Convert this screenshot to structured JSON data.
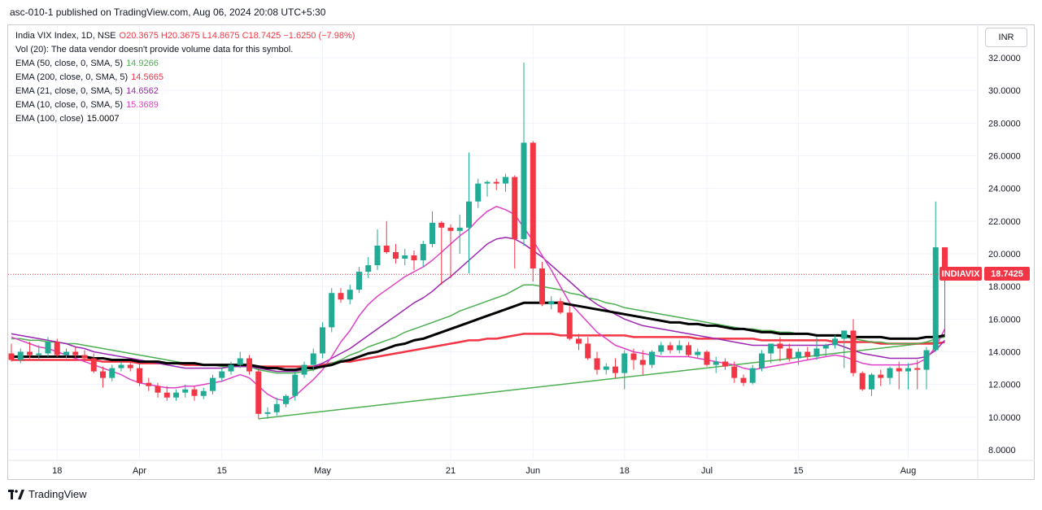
{
  "header": {
    "text": "asc-010-1 published on TradingView.com, Aug 06, 2024 20:08 UTC+5:30"
  },
  "legend": {
    "symbol": "India VIX Index, 1D, NSE",
    "ohlc": "O20.3675  H20.3675  L14.8675  C18.7425  −1.6250 (−7.98%)",
    "vol": "Vol (20): The data vendor doesn't provide volume data for this symbol.",
    "ema": [
      {
        "label": "EMA (50, close, 0, SMA, 5)",
        "value": "14.9266",
        "color": "#4caf50"
      },
      {
        "label": "EMA (200, close, 0, SMA, 5)",
        "value": "14.5665",
        "color": "#f23645"
      },
      {
        "label": "EMA (21, close, 0, SMA, 5)",
        "value": "14.6562",
        "color": "#9c27b0"
      },
      {
        "label": "EMA (10, close, 0, SMA, 5)",
        "value": "15.3689",
        "color": "#e040c8"
      },
      {
        "label": "EMA (100, close)",
        "value": "15.0007",
        "color": "#000000"
      }
    ]
  },
  "currency_button": "INR",
  "last_price": {
    "ticker": "INDIAVIX",
    "value": "18.7425"
  },
  "footer": {
    "brand": "TradingView"
  },
  "chart_data": {
    "type": "candlestick",
    "y_axis": {
      "min": 7,
      "max": 33,
      "ticks": [
        "8.0000",
        "10.0000",
        "12.0000",
        "14.0000",
        "16.0000",
        "18.0000",
        "20.0000",
        "22.0000",
        "24.0000",
        "26.0000",
        "28.0000",
        "30.0000",
        "32.0000"
      ]
    },
    "x_ticks": [
      {
        "label": "18",
        "i": 5
      },
      {
        "label": "Apr",
        "i": 14
      },
      {
        "label": "15",
        "i": 23
      },
      {
        "label": "May",
        "i": 34
      },
      {
        "label": "21",
        "i": 48
      },
      {
        "label": "Jun",
        "i": 57
      },
      {
        "label": "18",
        "i": 67
      },
      {
        "label": "Jul",
        "i": 76
      },
      {
        "label": "15",
        "i": 86
      },
      {
        "label": "Aug",
        "i": 98
      }
    ],
    "colors": {
      "up": "#22ab94",
      "down": "#f23645"
    },
    "candles": [
      [
        13.9,
        14.5,
        13.4,
        13.5
      ],
      [
        13.5,
        14.2,
        13.3,
        14.0
      ],
      [
        14.0,
        14.6,
        13.6,
        13.8
      ],
      [
        13.8,
        14.4,
        13.5,
        13.9
      ],
      [
        13.9,
        14.9,
        13.7,
        14.6
      ],
      [
        14.6,
        14.8,
        13.7,
        13.8
      ],
      [
        13.8,
        14.2,
        13.6,
        14.0
      ],
      [
        14.0,
        14.3,
        13.6,
        13.8
      ],
      [
        13.8,
        14.1,
        13.4,
        13.6
      ],
      [
        13.6,
        13.9,
        12.7,
        12.8
      ],
      [
        12.8,
        13.1,
        11.8,
        12.4
      ],
      [
        12.4,
        13.2,
        12.2,
        13.0
      ],
      [
        13.0,
        13.4,
        12.8,
        13.2
      ],
      [
        13.2,
        13.4,
        12.8,
        13.0
      ],
      [
        13.0,
        13.3,
        11.9,
        12.1
      ],
      [
        12.1,
        12.4,
        11.6,
        11.9
      ],
      [
        11.9,
        12.1,
        11.2,
        11.5
      ],
      [
        11.5,
        11.9,
        11.0,
        11.2
      ],
      [
        11.2,
        11.7,
        11.0,
        11.5
      ],
      [
        11.5,
        12.0,
        11.2,
        11.7
      ],
      [
        11.7,
        11.9,
        11.0,
        11.3
      ],
      [
        11.3,
        11.8,
        11.1,
        11.6
      ],
      [
        11.6,
        12.6,
        11.4,
        12.4
      ],
      [
        12.4,
        13.0,
        12.2,
        12.8
      ],
      [
        12.8,
        13.4,
        12.6,
        13.2
      ],
      [
        13.2,
        14.0,
        13.0,
        13.6
      ],
      [
        13.6,
        13.8,
        12.6,
        12.8
      ],
      [
        12.8,
        13.0,
        9.9,
        10.2
      ],
      [
        10.2,
        10.6,
        9.9,
        10.3
      ],
      [
        10.3,
        11.2,
        10.1,
        10.8
      ],
      [
        10.8,
        11.4,
        10.6,
        11.3
      ],
      [
        11.3,
        12.8,
        11.0,
        12.6
      ],
      [
        12.6,
        13.4,
        12.4,
        13.2
      ],
      [
        13.2,
        14.2,
        12.8,
        13.9
      ],
      [
        13.9,
        15.8,
        13.6,
        15.5
      ],
      [
        15.5,
        17.9,
        15.2,
        17.6
      ],
      [
        17.6,
        17.9,
        17.0,
        17.2
      ],
      [
        17.2,
        18.1,
        16.9,
        17.8
      ],
      [
        17.8,
        19.2,
        17.6,
        18.9
      ],
      [
        18.9,
        19.8,
        18.5,
        19.3
      ],
      [
        19.3,
        21.5,
        19.0,
        20.5
      ],
      [
        20.5,
        22.0,
        20.0,
        20.1
      ],
      [
        20.1,
        20.6,
        19.4,
        19.7
      ],
      [
        19.7,
        20.3,
        19.3,
        19.9
      ],
      [
        19.9,
        20.2,
        19.0,
        19.6
      ],
      [
        19.6,
        20.8,
        19.2,
        20.6
      ],
      [
        20.6,
        22.6,
        20.4,
        21.9
      ],
      [
        21.9,
        22.0,
        18.1,
        21.6
      ],
      [
        21.6,
        21.8,
        18.5,
        21.4
      ],
      [
        21.4,
        22.4,
        20.0,
        21.6
      ],
      [
        21.6,
        26.2,
        18.8,
        23.2
      ],
      [
        23.2,
        24.6,
        22.8,
        24.3
      ],
      [
        24.3,
        24.5,
        23.5,
        24.4
      ],
      [
        24.4,
        24.6,
        23.9,
        24.3
      ],
      [
        24.3,
        24.9,
        23.8,
        24.7
      ],
      [
        24.7,
        24.8,
        19.1,
        20.9
      ],
      [
        20.9,
        31.7,
        20.5,
        26.8
      ],
      [
        26.8,
        26.9,
        18.3,
        19.1
      ],
      [
        19.1,
        19.5,
        16.8,
        16.9
      ],
      [
        16.9,
        17.4,
        16.6,
        17.1
      ],
      [
        17.1,
        17.3,
        16.3,
        16.4
      ],
      [
        16.4,
        16.8,
        14.7,
        14.8
      ],
      [
        14.8,
        15.1,
        14.1,
        14.5
      ],
      [
        14.5,
        14.9,
        13.5,
        13.6
      ],
      [
        13.6,
        14.0,
        12.6,
        12.9
      ],
      [
        12.9,
        13.3,
        12.6,
        13.1
      ],
      [
        13.1,
        13.6,
        12.4,
        12.7
      ],
      [
        12.7,
        14.1,
        11.7,
        13.9
      ],
      [
        13.9,
        14.2,
        12.9,
        13.5
      ],
      [
        13.5,
        14.1,
        12.6,
        13.2
      ],
      [
        13.2,
        14.1,
        13.0,
        14.0
      ],
      [
        14.0,
        14.6,
        13.8,
        14.4
      ],
      [
        14.4,
        14.6,
        13.9,
        14.1
      ],
      [
        14.1,
        14.7,
        13.9,
        14.4
      ],
      [
        14.4,
        14.6,
        13.7,
        13.8
      ],
      [
        13.8,
        14.2,
        13.6,
        14.0
      ],
      [
        14.0,
        14.1,
        13.1,
        13.2
      ],
      [
        13.2,
        13.7,
        12.7,
        13.4
      ],
      [
        13.4,
        13.6,
        12.9,
        13.1
      ],
      [
        13.1,
        13.4,
        12.1,
        12.4
      ],
      [
        12.4,
        12.6,
        11.9,
        12.1
      ],
      [
        12.1,
        13.2,
        12.0,
        13.0
      ],
      [
        13.0,
        14.1,
        12.8,
        13.9
      ],
      [
        13.9,
        14.3,
        13.3,
        14.5
      ],
      [
        14.5,
        14.9,
        13.4,
        14.2
      ],
      [
        14.2,
        14.5,
        13.4,
        13.6
      ],
      [
        13.6,
        14.2,
        13.2,
        14.0
      ],
      [
        14.0,
        14.3,
        13.5,
        13.7
      ],
      [
        13.7,
        14.9,
        13.5,
        14.2
      ],
      [
        14.2,
        14.5,
        13.7,
        14.4
      ],
      [
        14.4,
        15.0,
        14.2,
        14.8
      ],
      [
        14.8,
        15.2,
        13.0,
        15.3
      ],
      [
        15.3,
        16.0,
        12.5,
        12.7
      ],
      [
        12.7,
        12.8,
        11.6,
        11.7
      ],
      [
        11.7,
        12.7,
        11.3,
        12.6
      ],
      [
        12.6,
        12.9,
        11.9,
        12.4
      ],
      [
        12.4,
        13.1,
        12.0,
        13.0
      ],
      [
        13.0,
        13.4,
        11.7,
        12.8
      ],
      [
        12.8,
        13.3,
        11.7,
        13.0
      ],
      [
        13.0,
        13.5,
        11.7,
        12.9
      ],
      [
        12.9,
        14.3,
        11.7,
        14.1
      ],
      [
        14.1,
        23.2,
        14.0,
        20.4
      ],
      [
        20.4,
        20.4,
        14.9,
        18.7
      ]
    ],
    "ema_lines": {
      "ema10": [
        14.9,
        14.7,
        14.5,
        14.3,
        14.2,
        14.0,
        13.8,
        13.6,
        13.4,
        13.2,
        13.0,
        12.8,
        12.6,
        12.3,
        12.1,
        12.0,
        11.9,
        11.8,
        11.8,
        11.9,
        11.9,
        12.0,
        12.1,
        12.2,
        12.4,
        12.6,
        12.4,
        11.9,
        11.4,
        11.1,
        11.0,
        11.3,
        11.8,
        12.3,
        12.9,
        13.7,
        14.6,
        15.3,
        16.2,
        16.9,
        17.4,
        17.8,
        18.2,
        18.6,
        18.9,
        19.2,
        19.6,
        20.1,
        20.6,
        21.1,
        21.5,
        22.1,
        22.6,
        22.9,
        22.7,
        22.4,
        21.6,
        20.8,
        19.9,
        19.0,
        18.0,
        17.0,
        16.4,
        15.8,
        15.2,
        14.8,
        14.4,
        14.2,
        14.0,
        13.9,
        13.8,
        13.7,
        13.7,
        13.7,
        13.7,
        13.6,
        13.5,
        13.4,
        13.3,
        13.2,
        13.0,
        12.9,
        13.0,
        13.1,
        13.2,
        13.3,
        13.4,
        13.5,
        13.6,
        13.7,
        13.8,
        13.7,
        13.5,
        13.3,
        13.2,
        13.2,
        13.2,
        13.2,
        13.2,
        13.3,
        13.6,
        14.3,
        15.4
      ],
      "ema21": [
        15.1,
        15.0,
        14.9,
        14.8,
        14.7,
        14.6,
        14.5,
        14.3,
        14.2,
        14.0,
        13.9,
        13.8,
        13.7,
        13.6,
        13.5,
        13.4,
        13.3,
        13.2,
        13.1,
        13.0,
        13.0,
        13.0,
        13.0,
        13.0,
        13.1,
        13.1,
        13.1,
        13.0,
        12.9,
        12.8,
        12.8,
        12.8,
        12.9,
        13.1,
        13.3,
        13.6,
        13.9,
        14.2,
        14.6,
        15.0,
        15.4,
        15.8,
        16.2,
        16.6,
        17.0,
        17.3,
        17.7,
        18.2,
        18.6,
        19.1,
        19.6,
        20.1,
        20.6,
        20.9,
        21.0,
        20.9,
        20.6,
        20.2,
        19.8,
        19.3,
        18.8,
        18.3,
        17.8,
        17.3,
        16.9,
        16.6,
        16.3,
        16.0,
        15.8,
        15.6,
        15.5,
        15.4,
        15.3,
        15.2,
        15.1,
        15.0,
        14.9,
        14.8,
        14.7,
        14.6,
        14.5,
        14.4,
        14.4,
        14.4,
        14.4,
        14.4,
        14.4,
        14.4,
        14.4,
        14.4,
        14.5,
        14.3,
        14.1,
        13.9,
        13.8,
        13.7,
        13.6,
        13.6,
        13.6,
        13.6,
        13.7,
        14.1,
        14.7
      ],
      "ema50": [
        14.8,
        14.8,
        14.7,
        14.7,
        14.6,
        14.6,
        14.5,
        14.5,
        14.4,
        14.3,
        14.2,
        14.1,
        14.0,
        13.9,
        13.8,
        13.7,
        13.6,
        13.5,
        13.4,
        13.3,
        13.3,
        13.2,
        13.2,
        13.1,
        13.1,
        13.1,
        13.1,
        12.9,
        12.8,
        12.7,
        12.7,
        12.7,
        12.8,
        12.9,
        13.1,
        13.3,
        13.5,
        13.8,
        14.0,
        14.3,
        14.5,
        14.7,
        14.9,
        15.2,
        15.4,
        15.6,
        15.8,
        16.0,
        16.2,
        16.5,
        16.7,
        16.9,
        17.1,
        17.3,
        17.5,
        17.8,
        18.1,
        18.1,
        18.0,
        17.9,
        17.8,
        17.6,
        17.5,
        17.3,
        17.2,
        17.0,
        16.9,
        16.7,
        16.6,
        16.5,
        16.4,
        16.3,
        16.2,
        16.1,
        16.0,
        15.9,
        15.8,
        15.7,
        15.6,
        15.5,
        15.4,
        15.4,
        15.3,
        15.3,
        15.2,
        15.2,
        15.1,
        15.1,
        15.0,
        15.0,
        15.0,
        14.9,
        14.8,
        14.7,
        14.6,
        14.6,
        14.5,
        14.5,
        14.5,
        14.5,
        14.6,
        14.8,
        14.9
      ],
      "ema100": [
        13.7,
        13.7,
        13.7,
        13.7,
        13.7,
        13.7,
        13.7,
        13.7,
        13.7,
        13.6,
        13.6,
        13.5,
        13.5,
        13.5,
        13.4,
        13.4,
        13.4,
        13.3,
        13.3,
        13.3,
        13.3,
        13.2,
        13.2,
        13.2,
        13.2,
        13.2,
        13.2,
        13.1,
        13.0,
        13.0,
        12.9,
        12.9,
        13.0,
        13.0,
        13.1,
        13.2,
        13.4,
        13.5,
        13.7,
        13.9,
        14.0,
        14.2,
        14.4,
        14.5,
        14.7,
        14.8,
        15.0,
        15.2,
        15.4,
        15.6,
        15.8,
        16.0,
        16.2,
        16.4,
        16.6,
        16.8,
        17.0,
        17.0,
        17.0,
        17.0,
        17.0,
        16.9,
        16.8,
        16.7,
        16.6,
        16.5,
        16.4,
        16.3,
        16.2,
        16.1,
        16.0,
        15.9,
        15.8,
        15.8,
        15.7,
        15.7,
        15.6,
        15.6,
        15.5,
        15.4,
        15.4,
        15.3,
        15.2,
        15.2,
        15.1,
        15.1,
        15.1,
        15.1,
        15.0,
        15.0,
        15.0,
        15.0,
        14.9,
        14.9,
        14.9,
        14.9,
        14.8,
        14.8,
        14.8,
        14.8,
        14.9,
        14.9,
        15.0
      ],
      "ema200": [
        13.5,
        13.5,
        13.5,
        13.5,
        13.5,
        13.5,
        13.5,
        13.5,
        13.5,
        13.5,
        13.4,
        13.4,
        13.4,
        13.4,
        13.3,
        13.3,
        13.3,
        13.3,
        13.3,
        13.2,
        13.2,
        13.2,
        13.2,
        13.2,
        13.2,
        13.2,
        13.2,
        13.1,
        13.1,
        13.1,
        13.1,
        13.1,
        13.1,
        13.1,
        13.2,
        13.3,
        13.4,
        13.4,
        13.5,
        13.6,
        13.7,
        13.8,
        13.9,
        14.0,
        14.1,
        14.2,
        14.3,
        14.4,
        14.5,
        14.6,
        14.7,
        14.7,
        14.8,
        14.8,
        14.9,
        15.0,
        15.1,
        15.1,
        15.1,
        15.1,
        15.0,
        15.0,
        15.0,
        15.0,
        15.0,
        15.0,
        15.0,
        15.0,
        14.9,
        14.9,
        14.9,
        14.9,
        14.9,
        14.9,
        14.9,
        14.8,
        14.8,
        14.8,
        14.8,
        14.8,
        14.8,
        14.8,
        14.7,
        14.7,
        14.7,
        14.7,
        14.7,
        14.7,
        14.7,
        14.7,
        14.6,
        14.6,
        14.6,
        14.6,
        14.6,
        14.5,
        14.5,
        14.5,
        14.5,
        14.5,
        14.5,
        14.5,
        14.6
      ]
    },
    "trendline": {
      "from": [
        27,
        9.9
      ],
      "to": [
        101,
        14.6
      ],
      "color": "#4caf50"
    }
  }
}
